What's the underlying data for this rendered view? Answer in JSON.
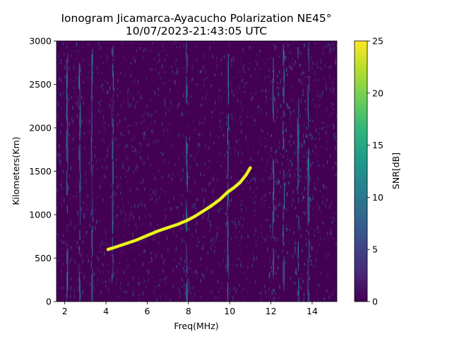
{
  "chart_data": {
    "type": "heatmap",
    "title": "Ionogram Jicamarca-Ayacucho Polarization NE45°",
    "subtitle": "10/07/2023-21:43:05 UTC",
    "xlabel": "Freq(MHz)",
    "ylabel": "Kilometers(Km)",
    "xlim": [
      1.6,
      15.2
    ],
    "ylim": [
      0,
      3000
    ],
    "xticks": [
      2,
      4,
      6,
      8,
      10,
      12,
      14
    ],
    "yticks": [
      0,
      500,
      1000,
      1500,
      2000,
      2500,
      3000
    ],
    "colorbar": {
      "label": "SNR[dB]",
      "colormap": "viridis",
      "range": [
        0,
        25
      ],
      "ticks": [
        0,
        5,
        10,
        15,
        20,
        25
      ]
    },
    "trace": {
      "name": "",
      "x": [
        4.1,
        4.5,
        5.0,
        5.5,
        6.0,
        6.5,
        7.0,
        7.5,
        7.9,
        8.3,
        8.7,
        9.1,
        9.5,
        9.9,
        10.2,
        10.5,
        10.8,
        11.0
      ],
      "y": [
        600,
        630,
        670,
        710,
        760,
        810,
        850,
        890,
        930,
        980,
        1040,
        1100,
        1170,
        1260,
        1310,
        1370,
        1460,
        1540
      ],
      "snr_db": 25
    },
    "vertical_interference_mhz": [
      2.1,
      2.7,
      3.3,
      4.3,
      7.9,
      9.9,
      12.1,
      12.6,
      13.3,
      13.8
    ],
    "noise_band_mhz": [
      11.9,
      14.0
    ]
  },
  "colors": {
    "background_low": "#440154",
    "trace": "#f0f921",
    "viridis_stops": [
      "#440154",
      "#482878",
      "#3e4989",
      "#31688e",
      "#26828e",
      "#1f9e89",
      "#35b779",
      "#6ece58",
      "#b5de2b",
      "#fde725"
    ]
  }
}
